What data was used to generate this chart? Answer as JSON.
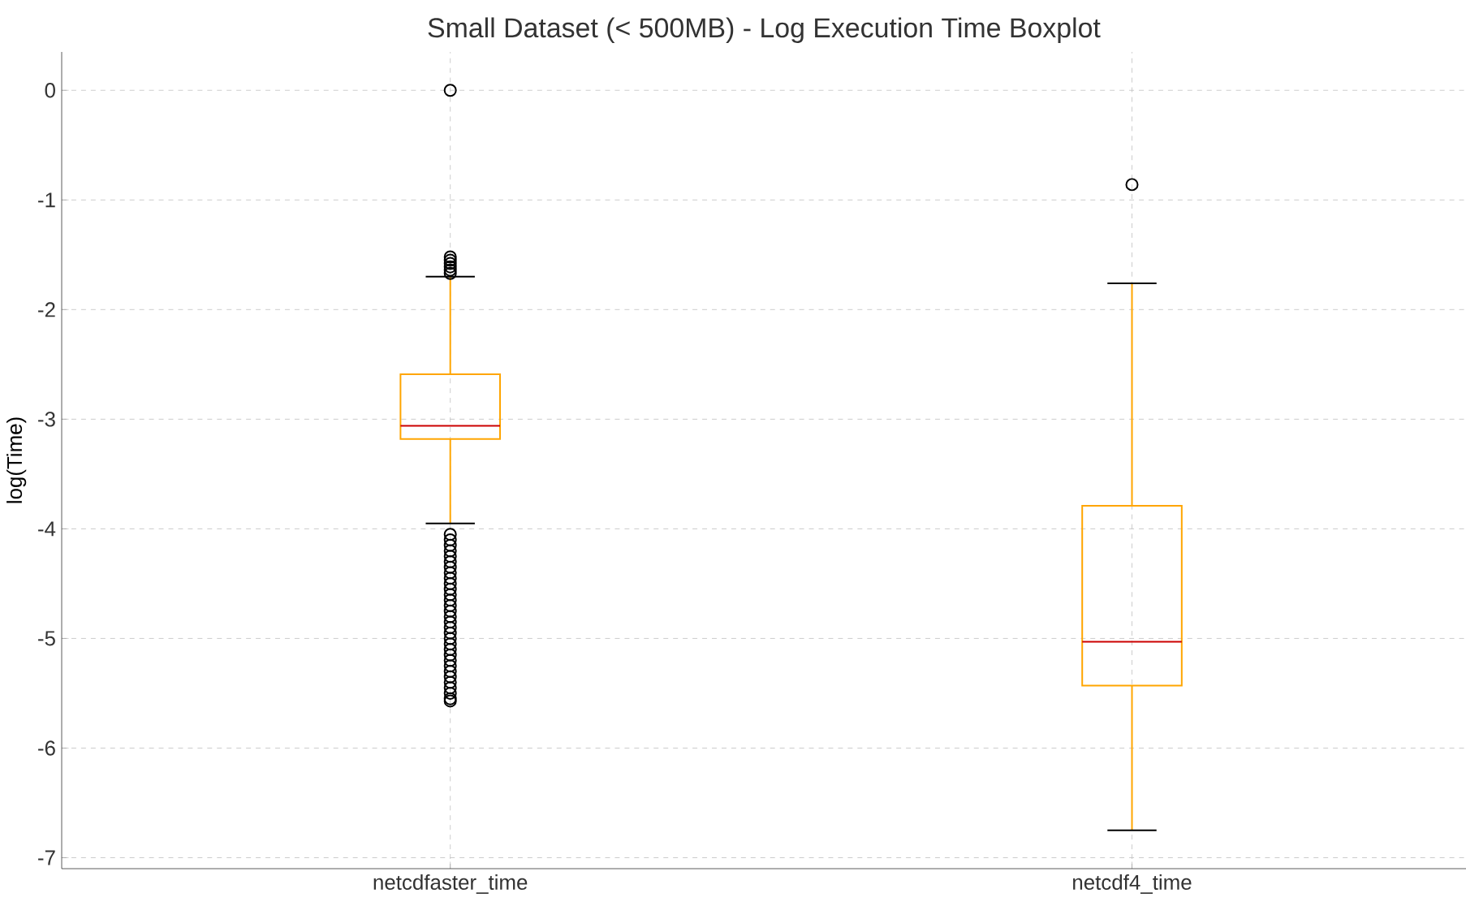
{
  "chart_data": {
    "type": "box",
    "title": "Small Dataset (< 500MB) - Log Execution Time Boxplot",
    "ylabel": "log(Time)",
    "categories": [
      "netcdfaster_time",
      "netcdf4_time"
    ],
    "ylim": [
      -7.1,
      0.35
    ],
    "yticks": [
      -7,
      -6,
      -5,
      -4,
      -3,
      -2,
      -1,
      0
    ],
    "grid": true,
    "series": [
      {
        "color": "#ffa500",
        "boxes": [
          {
            "low": -3.95,
            "q1": -3.18,
            "median": -3.06,
            "q3": -2.59,
            "high": -1.7,
            "outliers": [
              0,
              -1.52,
              -1.55,
              -1.58,
              -1.61,
              -1.64,
              -1.67,
              -4.05,
              -4.1,
              -4.15,
              -4.2,
              -4.25,
              -4.3,
              -4.35,
              -4.4,
              -4.45,
              -4.5,
              -4.55,
              -4.6,
              -4.65,
              -4.7,
              -4.75,
              -4.8,
              -4.85,
              -4.9,
              -4.95,
              -5.0,
              -5.05,
              -5.1,
              -5.15,
              -5.2,
              -5.25,
              -5.3,
              -5.35,
              -5.4,
              -5.45,
              -5.5,
              -5.55,
              -5.57
            ]
          },
          {
            "low": -6.75,
            "q1": -5.43,
            "median": -5.03,
            "q3": -3.79,
            "high": -1.76,
            "outliers": [
              -0.86
            ]
          }
        ]
      }
    ]
  }
}
